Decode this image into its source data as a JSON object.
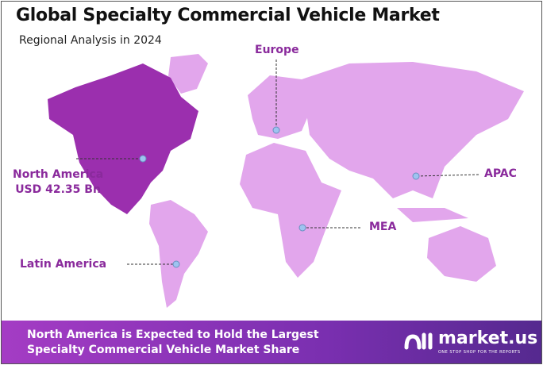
{
  "header": {
    "title": "Global Specialty Commercial Vehicle Market",
    "subtitle": "Regional Analysis in 2024"
  },
  "regions": [
    {
      "name": "North America",
      "value": "USD 42.35 Bn",
      "highlighted": true
    },
    {
      "name": "Europe"
    },
    {
      "name": "APAC"
    },
    {
      "name": "MEA"
    },
    {
      "name": "Latin America"
    }
  ],
  "colors": {
    "highlight": "#9b2fae",
    "land": "#e2a6ec",
    "label": "#8a2a9c",
    "marker": "#9ec3f0"
  },
  "footer": {
    "line1": "North America is Expected to Hold the Largest",
    "line2": "Specialty Commercial Vehicle Market Share"
  },
  "logo": {
    "name": "market.us",
    "tagline": "ONE STOP SHOP FOR THE REPORTS"
  }
}
